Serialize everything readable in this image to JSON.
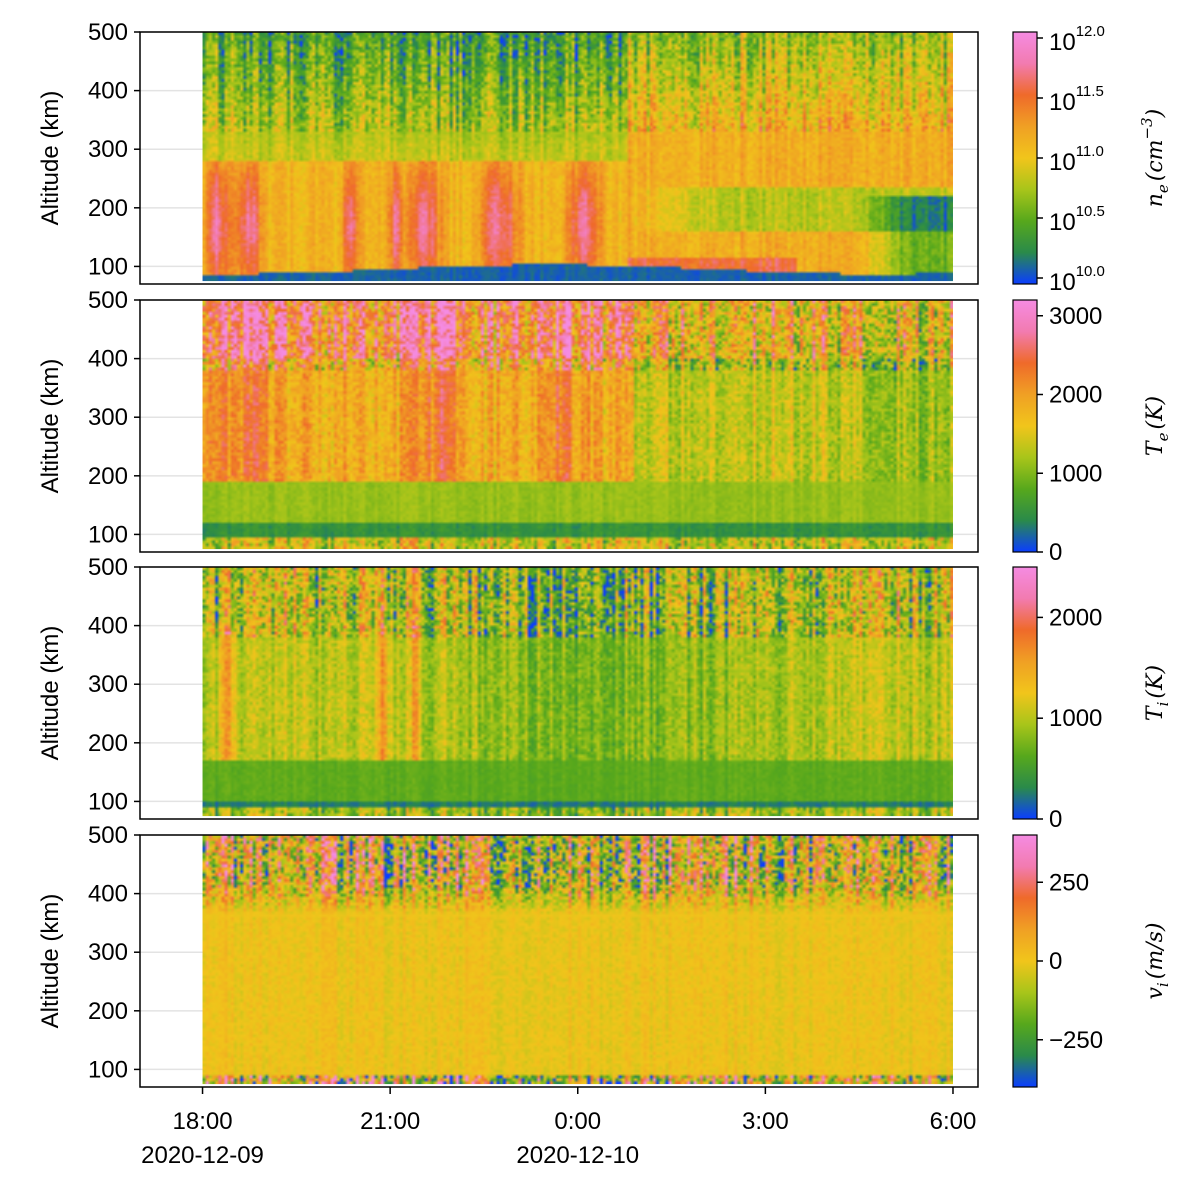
{
  "chart_data": {
    "type": "heatmap",
    "x_axis": {
      "range_hours": [
        17.0,
        30.4
      ],
      "ticks": [
        {
          "value": 18,
          "label": "18:00",
          "date": "2020-12-09"
        },
        {
          "value": 21,
          "label": "21:00",
          "date": ""
        },
        {
          "value": 24,
          "label": "0:00",
          "date": "2020-12-10"
        },
        {
          "value": 27,
          "label": "3:00",
          "date": ""
        },
        {
          "value": 30,
          "label": "6:00",
          "date": ""
        }
      ],
      "data_range_hours": [
        18,
        30
      ]
    },
    "panels": [
      {
        "id": "ne",
        "ylabel": "Altitude (km)",
        "ylim": [
          70,
          500
        ],
        "data_altitude_range": [
          75,
          500
        ],
        "yticks": [
          100,
          200,
          300,
          400,
          500
        ],
        "colorbar": {
          "label_main": "n",
          "label_sub": "e",
          "label_unit": "(cm",
          "label_unit_sup": "−3",
          "label_close": ")",
          "scale": "log10",
          "range": [
            9.95,
            12.05
          ],
          "ticks": [
            {
              "value": 10.0,
              "base": "10",
              "exp": "10.0"
            },
            {
              "value": 10.5,
              "base": "10",
              "exp": "10.5"
            },
            {
              "value": 11.0,
              "base": "10",
              "exp": "11.0"
            },
            {
              "value": 11.5,
              "base": "10",
              "exp": "11.5"
            },
            {
              "value": 12.0,
              "base": "10",
              "exp": "12.0"
            }
          ]
        },
        "pattern": "electron-density"
      },
      {
        "id": "te",
        "ylabel": "Altitude (km)",
        "ylim": [
          70,
          500
        ],
        "data_altitude_range": [
          75,
          500
        ],
        "yticks": [
          100,
          200,
          300,
          400,
          500
        ],
        "colorbar": {
          "label_main": "T",
          "label_sub": "e",
          "label_unit": "(K)",
          "range": [
            0,
            3200
          ],
          "ticks": [
            {
              "value": 0,
              "label": "0"
            },
            {
              "value": 1000,
              "label": "1000"
            },
            {
              "value": 2000,
              "label": "2000"
            },
            {
              "value": 3000,
              "label": "3000"
            }
          ]
        },
        "pattern": "electron-temperature"
      },
      {
        "id": "ti",
        "ylabel": "Altitude (km)",
        "ylim": [
          70,
          500
        ],
        "data_altitude_range": [
          75,
          500
        ],
        "yticks": [
          100,
          200,
          300,
          400,
          500
        ],
        "colorbar": {
          "label_main": "T",
          "label_sub": "i",
          "label_unit": "(K)",
          "range": [
            0,
            2500
          ],
          "ticks": [
            {
              "value": 0,
              "label": "0"
            },
            {
              "value": 1000,
              "label": "1000"
            },
            {
              "value": 2000,
              "label": "2000"
            }
          ]
        },
        "pattern": "ion-temperature"
      },
      {
        "id": "vi",
        "ylabel": "Altitude (km)",
        "ylim": [
          70,
          500
        ],
        "data_altitude_range": [
          75,
          500
        ],
        "yticks": [
          100,
          200,
          300,
          400,
          500
        ],
        "colorbar": {
          "label_main": "v",
          "label_sub": "i",
          "label_unit": "(m/s)",
          "range": [
            -400,
            400
          ],
          "ticks": [
            {
              "value": -250,
              "label": "−250"
            },
            {
              "value": 0,
              "label": "0"
            },
            {
              "value": 250,
              "label": "250"
            }
          ]
        },
        "pattern": "ion-velocity"
      }
    ],
    "colormap": [
      "#0b3dff",
      "#2a8a4a",
      "#57a81c",
      "#a8c51a",
      "#f1c51b",
      "#f0a024",
      "#ef6a2a",
      "#f27bb0",
      "#f58be2"
    ]
  }
}
